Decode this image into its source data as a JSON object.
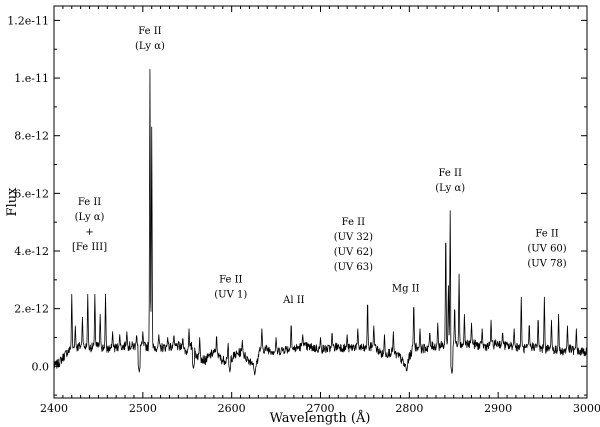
{
  "chart_data": {
    "type": "line",
    "xlabel": "Wavelength  (Å)",
    "ylabel": "Flux",
    "xlim": [
      2400,
      3000
    ],
    "ylim": [
      -1.1e-12,
      1.25e-11
    ],
    "grid": false,
    "xticks": [
      {
        "value": 2400,
        "label": "2400"
      },
      {
        "value": 2500,
        "label": "2500"
      },
      {
        "value": 2600,
        "label": "2600"
      },
      {
        "value": 2700,
        "label": "2700"
      },
      {
        "value": 2800,
        "label": "2800"
      },
      {
        "value": 2900,
        "label": "2900"
      },
      {
        "value": 3000,
        "label": "3000"
      }
    ],
    "yticks": [
      {
        "value": 0,
        "label": "0.0"
      },
      {
        "value": 2e-12,
        "label": "2.e-12"
      },
      {
        "value": 4e-12,
        "label": "4.e-12"
      },
      {
        "value": 6e-12,
        "label": "6.e-12"
      },
      {
        "value": 8e-12,
        "label": "8.e-12"
      },
      {
        "value": 1e-11,
        "label": "1.e-11"
      },
      {
        "value": 1.2e-11,
        "label": "1.2e-11"
      }
    ],
    "baseline": [
      [
        2400,
        0.0
      ],
      [
        2405,
        1e-13
      ],
      [
        2410,
        3e-13
      ],
      [
        2415,
        5e-13
      ],
      [
        2420,
        6e-13
      ],
      [
        2430,
        7e-13
      ],
      [
        2440,
        6.5e-13
      ],
      [
        2450,
        7e-13
      ],
      [
        2460,
        6e-13
      ],
      [
        2470,
        6.5e-13
      ],
      [
        2480,
        7e-13
      ],
      [
        2490,
        7e-13
      ],
      [
        2500,
        7e-13
      ],
      [
        2520,
        6.5e-13
      ],
      [
        2540,
        7e-13
      ],
      [
        2550,
        5e-13
      ],
      [
        2555,
        7e-13
      ],
      [
        2560,
        4e-13
      ],
      [
        2570,
        2e-13
      ],
      [
        2580,
        5e-13
      ],
      [
        2590,
        2e-13
      ],
      [
        2600,
        3e-13
      ],
      [
        2610,
        5e-13
      ],
      [
        2620,
        2e-13
      ],
      [
        2628,
        1e-13
      ],
      [
        2632,
        6e-13
      ],
      [
        2640,
        6e-13
      ],
      [
        2650,
        5e-13
      ],
      [
        2660,
        6e-13
      ],
      [
        2670,
        6e-13
      ],
      [
        2680,
        7e-13
      ],
      [
        2690,
        6.5e-13
      ],
      [
        2700,
        6e-13
      ],
      [
        2710,
        6e-13
      ],
      [
        2720,
        7e-13
      ],
      [
        2730,
        6e-13
      ],
      [
        2740,
        7e-13
      ],
      [
        2750,
        6e-13
      ],
      [
        2760,
        7e-13
      ],
      [
        2770,
        4e-13
      ],
      [
        2780,
        5e-13
      ],
      [
        2790,
        3e-13
      ],
      [
        2795,
        0.0
      ],
      [
        2800,
        3e-13
      ],
      [
        2805,
        7e-13
      ],
      [
        2815,
        6e-13
      ],
      [
        2825,
        7e-13
      ],
      [
        2835,
        7e-13
      ],
      [
        2850,
        8e-13
      ],
      [
        2860,
        7e-13
      ],
      [
        2870,
        8e-13
      ],
      [
        2880,
        7e-13
      ],
      [
        2890,
        7e-13
      ],
      [
        2900,
        8e-13
      ],
      [
        2910,
        7e-13
      ],
      [
        2920,
        7e-13
      ],
      [
        2930,
        6e-13
      ],
      [
        2940,
        7e-13
      ],
      [
        2950,
        6e-13
      ],
      [
        2960,
        6e-13
      ],
      [
        2970,
        5e-13
      ],
      [
        2980,
        6e-13
      ],
      [
        2990,
        5e-13
      ],
      [
        3000,
        5e-13
      ]
    ],
    "peaks": [
      [
        2420,
        2.5e-12
      ],
      [
        2424,
        1.4e-12
      ],
      [
        2432,
        1.7e-12
      ],
      [
        2438,
        2.5e-12
      ],
      [
        2446,
        2.5e-12
      ],
      [
        2452,
        1.8e-12
      ],
      [
        2458,
        2.5e-12
      ],
      [
        2466,
        1.2e-12
      ],
      [
        2474,
        1.1e-12
      ],
      [
        2482,
        1.2e-12
      ],
      [
        2493,
        1.1e-12
      ],
      [
        2500,
        1.2e-12
      ],
      [
        2508,
        1.03e-11
      ],
      [
        2510,
        8.3e-12
      ],
      [
        2518,
        1.1e-12
      ],
      [
        2528,
        1e-12
      ],
      [
        2535,
        1.1e-12
      ],
      [
        2545,
        1e-12
      ],
      [
        2552,
        1.3e-12
      ],
      [
        2564,
        1e-12
      ],
      [
        2583,
        1.1e-12
      ],
      [
        2596,
        8e-13
      ],
      [
        2612,
        9e-13
      ],
      [
        2634,
        1.3e-12
      ],
      [
        2650,
        1e-12
      ],
      [
        2667,
        1.5e-12
      ],
      [
        2680,
        1.1e-12
      ],
      [
        2700,
        1e-12
      ],
      [
        2713,
        1.2e-12
      ],
      [
        2730,
        1.1e-12
      ],
      [
        2742,
        1.3e-12
      ],
      [
        2753,
        2.3e-12
      ],
      [
        2760,
        1.4e-12
      ],
      [
        2772,
        1.1e-12
      ],
      [
        2782,
        1.2e-12
      ],
      [
        2805,
        2.2e-12
      ],
      [
        2812,
        1.3e-12
      ],
      [
        2823,
        1.2e-12
      ],
      [
        2832,
        1.5e-12
      ],
      [
        2841,
        4.7e-12
      ],
      [
        2844,
        2.8e-12
      ],
      [
        2846,
        5.4e-12
      ],
      [
        2851,
        2.1e-12
      ],
      [
        2856,
        3.2e-12
      ],
      [
        2862,
        1.8e-12
      ],
      [
        2870,
        1.5e-12
      ],
      [
        2882,
        1.3e-12
      ],
      [
        2892,
        1.6e-12
      ],
      [
        2905,
        1.2e-12
      ],
      [
        2918,
        1.3e-12
      ],
      [
        2926,
        2.4e-12
      ],
      [
        2935,
        1.5e-12
      ],
      [
        2945,
        1.7e-12
      ],
      [
        2952,
        2.4e-12
      ],
      [
        2960,
        1.6e-12
      ],
      [
        2968,
        1.8e-12
      ],
      [
        2978,
        1.4e-12
      ],
      [
        2988,
        1.3e-12
      ]
    ],
    "dips": [
      [
        2496,
        -2e-13
      ],
      [
        2557,
        -1e-13
      ],
      [
        2598,
        -2e-13
      ],
      [
        2626,
        -3e-13
      ],
      [
        2797,
        -2e-13
      ],
      [
        2848,
        -2.5e-13
      ]
    ],
    "annotations": [
      {
        "x": 2440,
        "y": 5.6e-12,
        "lines": [
          "Fe II",
          "(Ly α)",
          "+",
          "[Fe III]"
        ]
      },
      {
        "x": 2508,
        "y": 1.152e-11,
        "lines": [
          "Fe II",
          "(Ly α)"
        ]
      },
      {
        "x": 2599,
        "y": 2.9e-12,
        "lines": [
          "Fe II",
          "(UV 1)"
        ]
      },
      {
        "x": 2670,
        "y": 2.2e-12,
        "lines": [
          "Al II"
        ]
      },
      {
        "x": 2737,
        "y": 4.9e-12,
        "lines": [
          "Fe II",
          "(UV 32)",
          "(UV 62)",
          "(UV 63)"
        ]
      },
      {
        "x": 2796,
        "y": 2.6e-12,
        "lines": [
          "Mg II"
        ]
      },
      {
        "x": 2846,
        "y": 6.6e-12,
        "lines": [
          "Fe II",
          "(Ly α)"
        ]
      },
      {
        "x": 2955,
        "y": 4.5e-12,
        "lines": [
          "Fe II",
          "(UV 60)",
          "(UV 78)"
        ]
      }
    ]
  }
}
